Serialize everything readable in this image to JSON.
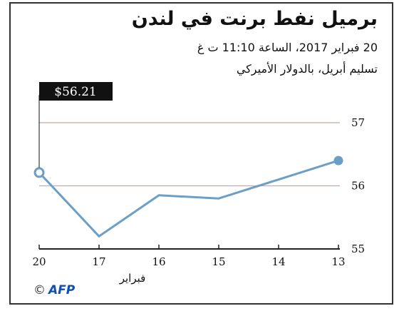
{
  "header": {
    "title": "برميل نفط برنت في لندن",
    "subtitle_line1": "20 فبراير 2017، الساعة 11:10 ت غ",
    "subtitle_line2": "تسليم أبريل، بالدولار الأميركي"
  },
  "credit": {
    "symbol": "©",
    "agency": "AFP"
  },
  "colors": {
    "line": "#6c9fc6",
    "callout_bg": "#111111",
    "grid": "#c9a9a9"
  },
  "chart_data": {
    "type": "line",
    "categories": [
      "20",
      "17",
      "16",
      "15",
      "14",
      "13"
    ],
    "x_direction": "right-to-left",
    "values": [
      56.21,
      55.2,
      55.85,
      55.8,
      56.1,
      56.4
    ],
    "xlabel": "فبراير",
    "ylabel": "",
    "ylim": [
      55,
      57
    ],
    "yticks": [
      "57",
      "56",
      "55"
    ],
    "callout": "$56.21",
    "grid": true
  }
}
